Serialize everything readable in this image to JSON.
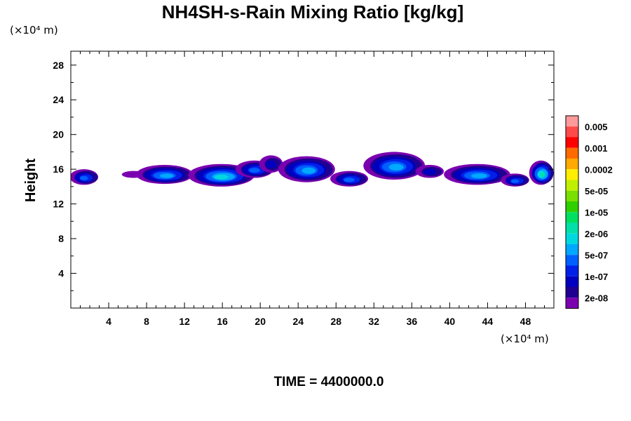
{
  "chart_data": {
    "type": "heatmap",
    "title": "NH4SH-s-Rain Mixing Ratio [kg/kg]",
    "xlabel": "",
    "ylabel": "Height",
    "x_unit": "(×10⁴ m)",
    "y_unit": "(×10⁴ m)",
    "xlim": [
      0,
      51
    ],
    "ylim": [
      0,
      29.6
    ],
    "x_ticks": [
      "4",
      "8",
      "12",
      "16",
      "20",
      "24",
      "28",
      "32",
      "36",
      "40",
      "44",
      "48"
    ],
    "y_ticks": [
      "4",
      "8",
      "12",
      "16",
      "20",
      "24",
      "28"
    ],
    "colorbar": {
      "labels": [
        "0.005",
        "0.001",
        "0.0002",
        "5e-05",
        "1e-05",
        "2e-06",
        "5e-07",
        "1e-07",
        "2e-08"
      ],
      "colors": [
        "#ff9a9a",
        "#ff4a4a",
        "#ff0000",
        "#ff6a00",
        "#ffaa00",
        "#ffee00",
        "#c0f000",
        "#7ae000",
        "#30d000",
        "#00e060",
        "#00e0a8",
        "#00d8e0",
        "#00a8ff",
        "#0060ff",
        "#0020e8",
        "#0000c0",
        "#200090",
        "#7a00b0"
      ]
    },
    "cloud_blobs": [
      {
        "x": 0.0,
        "w": 3.0,
        "y": 14.2,
        "h": 1.8,
        "level": 5
      },
      {
        "x": 5.5,
        "w": 2.5,
        "y": 15.0,
        "h": 0.8,
        "level": 1
      },
      {
        "x": 7.0,
        "w": 6.0,
        "y": 14.3,
        "h": 2.2,
        "level": 6
      },
      {
        "x": 12.5,
        "w": 7.0,
        "y": 14.0,
        "h": 2.6,
        "level": 7
      },
      {
        "x": 17.5,
        "w": 4.0,
        "y": 15.0,
        "h": 2.0,
        "level": 5
      },
      {
        "x": 20.0,
        "w": 2.5,
        "y": 15.6,
        "h": 2.0,
        "level": 3
      },
      {
        "x": 22.0,
        "w": 6.0,
        "y": 14.5,
        "h": 3.0,
        "level": 6
      },
      {
        "x": 27.5,
        "w": 4.0,
        "y": 14.0,
        "h": 1.8,
        "level": 5
      },
      {
        "x": 31.0,
        "w": 6.5,
        "y": 14.8,
        "h": 3.2,
        "level": 6
      },
      {
        "x": 36.5,
        "w": 3.0,
        "y": 15.0,
        "h": 1.5,
        "level": 3
      },
      {
        "x": 39.5,
        "w": 7.0,
        "y": 14.2,
        "h": 2.4,
        "level": 6
      },
      {
        "x": 45.5,
        "w": 3.0,
        "y": 14.0,
        "h": 1.5,
        "level": 5
      },
      {
        "x": 48.5,
        "w": 2.5,
        "y": 14.2,
        "h": 2.8,
        "level": 8
      }
    ],
    "footer": "TIME = 4400000.0"
  }
}
